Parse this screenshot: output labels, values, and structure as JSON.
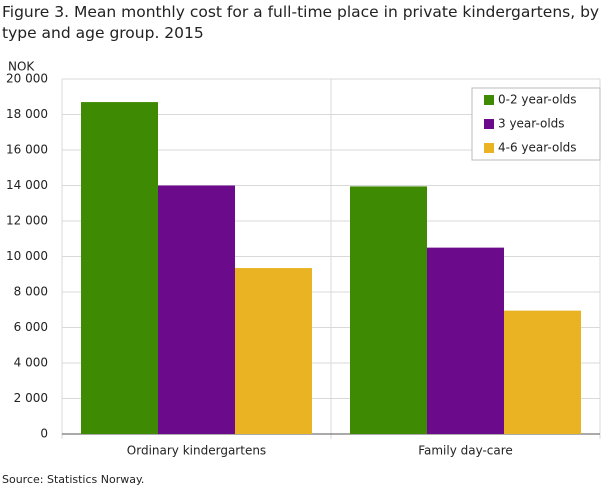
{
  "chart_data": {
    "type": "bar",
    "title": "Figure 3. Mean monthly cost for a full-time place in private kindergartens, by type and age group. 2015",
    "y_label": "NOK",
    "source": "Source: Statistics Norway.",
    "categories": [
      "Ordinary kindergartens",
      "Family day-care"
    ],
    "series": [
      {
        "name": "0-2 year-olds",
        "color": "#3f8a03",
        "values": [
          18700,
          13950
        ]
      },
      {
        "name": "3 year-olds",
        "color": "#6b0a8a",
        "values": [
          14000,
          10500
        ]
      },
      {
        "name": "4-6 year-olds",
        "color": "#eab323",
        "values": [
          9350,
          6950
        ]
      }
    ],
    "ylim": [
      0,
      20000
    ],
    "yticks": [
      0,
      {
        "value": 2000,
        "label": "2 000"
      },
      {
        "value": 4000,
        "label": "4 000"
      },
      {
        "value": 6000,
        "label": "6 000"
      },
      {
        "value": 8000,
        "label": "8 000"
      },
      {
        "value": 10000,
        "label": "10 000"
      },
      {
        "value": 12000,
        "label": "12 000"
      },
      {
        "value": 14000,
        "label": "14 000"
      },
      {
        "value": 16000,
        "label": "16 000"
      },
      {
        "value": 18000,
        "label": "18 000"
      },
      {
        "value": 20000,
        "label": "20 000"
      }
    ],
    "grid": true,
    "legend": "top-right"
  }
}
